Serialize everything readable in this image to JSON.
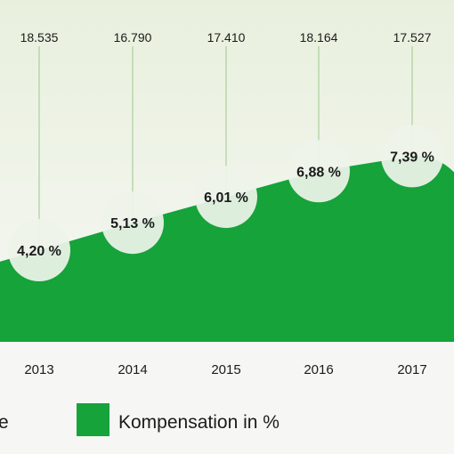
{
  "colors": {
    "area": "#15a33a",
    "background_top": "#e8f0dd",
    "background_bottom": "#f6f7f4",
    "gridline": "#9ec98c",
    "bubble": "#eef3ea"
  },
  "chart_data": {
    "type": "area",
    "categories": [
      "2013",
      "2014",
      "2015",
      "2016",
      "2017"
    ],
    "series": [
      {
        "name": "Kompensation in %",
        "values": [
          4.2,
          5.13,
          6.01,
          6.88,
          7.39
        ],
        "labels": [
          "4,20 %",
          "5,13 %",
          "6,01 %",
          "6,88 %",
          "7,39 %"
        ]
      }
    ],
    "top_values": [
      "18.535",
      "16.790",
      "17.410",
      "18.164",
      "17.527"
    ],
    "legend": [
      {
        "label": "e",
        "color": "",
        "partial": true
      },
      {
        "label": "Kompensation in %",
        "color": "#15a33a"
      }
    ],
    "ylim": [
      0,
      10
    ],
    "grid": "vertical",
    "legend_placement": "bottom"
  }
}
